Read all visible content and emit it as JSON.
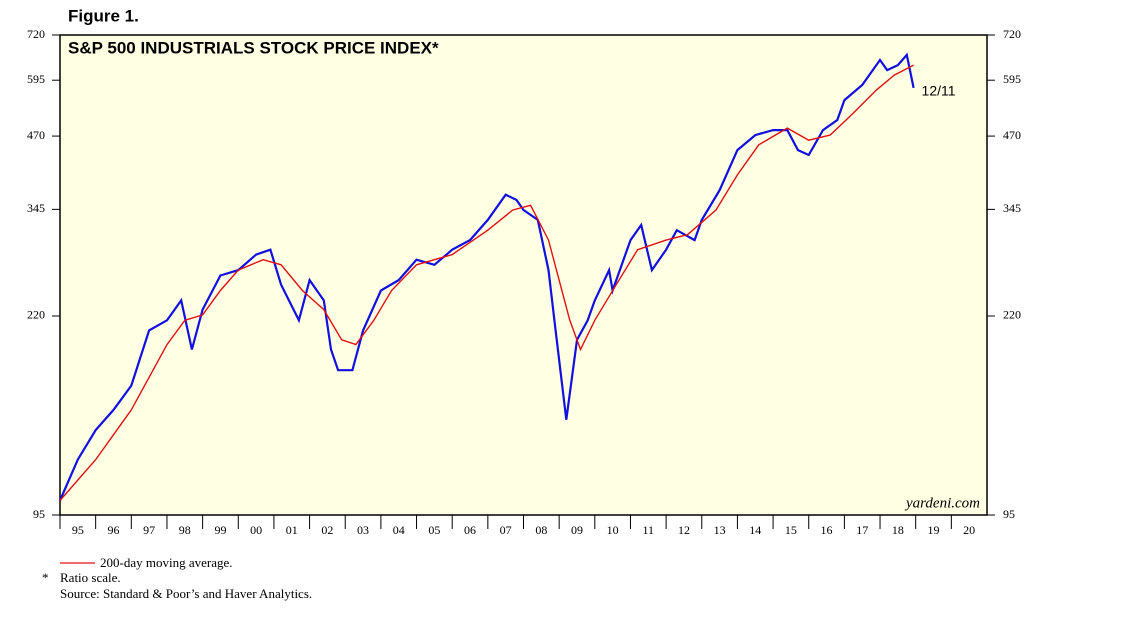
{
  "figure_label": "Figure 1.",
  "chart_data": {
    "type": "line",
    "title": "S&P 500 INDUSTRIALS STOCK PRICE INDEX*",
    "log_scale": true,
    "xlim": [
      1995,
      2021
    ],
    "xticks": [
      {
        "value": 1995,
        "label": "95"
      },
      {
        "value": 1996,
        "label": "96"
      },
      {
        "value": 1997,
        "label": "97"
      },
      {
        "value": 1998,
        "label": "98"
      },
      {
        "value": 1999,
        "label": "99"
      },
      {
        "value": 2000,
        "label": "00"
      },
      {
        "value": 2001,
        "label": "01"
      },
      {
        "value": 2002,
        "label": "02"
      },
      {
        "value": 2003,
        "label": "03"
      },
      {
        "value": 2004,
        "label": "04"
      },
      {
        "value": 2005,
        "label": "05"
      },
      {
        "value": 2006,
        "label": "06"
      },
      {
        "value": 2007,
        "label": "07"
      },
      {
        "value": 2008,
        "label": "08"
      },
      {
        "value": 2009,
        "label": "09"
      },
      {
        "value": 2010,
        "label": "10"
      },
      {
        "value": 2011,
        "label": "11"
      },
      {
        "value": 2012,
        "label": "12"
      },
      {
        "value": 2013,
        "label": "13"
      },
      {
        "value": 2014,
        "label": "14"
      },
      {
        "value": 2015,
        "label": "15"
      },
      {
        "value": 2016,
        "label": "16"
      },
      {
        "value": 2017,
        "label": "17"
      },
      {
        "value": 2018,
        "label": "18"
      },
      {
        "value": 2019,
        "label": "19"
      },
      {
        "value": 2020,
        "label": "20"
      }
    ],
    "ylim": [
      95,
      720
    ],
    "yticks": [
      95,
      220,
      345,
      470,
      595,
      720
    ],
    "series": [
      {
        "color": "#1010e0",
        "x": [
          1995.0,
          1995.5,
          1996.0,
          1996.5,
          1997.0,
          1997.5,
          1998.0,
          1998.4,
          1998.7,
          1999.0,
          1999.5,
          2000.0,
          2000.5,
          2000.9,
          2001.2,
          2001.7,
          2002.0,
          2002.4,
          2002.6,
          2002.8,
          2003.2,
          2003.5,
          2004.0,
          2004.5,
          2005.0,
          2005.5,
          2006.0,
          2006.5,
          2007.0,
          2007.5,
          2007.8,
          2008.0,
          2008.4,
          2008.7,
          2008.9,
          2009.2,
          2009.5,
          2009.8,
          2010.0,
          2010.4,
          2010.5,
          2011.0,
          2011.3,
          2011.6,
          2012.0,
          2012.3,
          2012.8,
          2013.0,
          2013.5,
          2014.0,
          2014.5,
          2015.0,
          2015.4,
          2015.7,
          2016.0,
          2016.4,
          2016.8,
          2017.0,
          2017.5,
          2018.0,
          2018.2,
          2018.5,
          2018.75,
          2018.94
        ],
        "values": [
          101,
          120,
          136,
          148,
          164,
          207,
          216,
          235,
          191,
          226,
          261,
          267,
          285,
          291,
          251,
          216,
          256,
          235,
          191,
          175,
          175,
          207,
          245,
          256,
          279,
          273,
          291,
          303,
          330,
          367,
          359,
          344,
          330,
          267,
          207,
          142,
          199,
          216,
          235,
          267,
          245,
          303,
          323,
          267,
          291,
          316,
          303,
          330,
          374,
          443,
          472,
          482,
          482,
          443,
          434,
          482,
          503,
          547,
          583,
          648,
          621,
          634,
          662,
          576
        ]
      },
      {
        "name": "200-day moving average.",
        "color": "#e01010",
        "x": [
          1995.0,
          1996.0,
          1997.0,
          1998.0,
          1998.5,
          1999.0,
          1999.5,
          2000.0,
          2000.7,
          2001.2,
          2001.8,
          2002.4,
          2002.9,
          2003.3,
          2003.8,
          2004.3,
          2005.0,
          2006.0,
          2007.0,
          2007.7,
          2008.2,
          2008.7,
          2009.3,
          2009.6,
          2010.0,
          2010.6,
          2011.2,
          2012.0,
          2012.6,
          2013.4,
          2014.0,
          2014.6,
          2015.4,
          2016.0,
          2016.6,
          2017.2,
          2017.9,
          2018.4,
          2018.94
        ],
        "values": [
          101,
          120,
          148,
          195,
          216,
          221,
          245,
          267,
          279,
          273,
          245,
          226,
          199,
          195,
          216,
          245,
          273,
          285,
          316,
          344,
          351,
          303,
          216,
          191,
          216,
          251,
          291,
          303,
          310,
          344,
          399,
          453,
          486,
          462,
          472,
          514,
          571,
          608,
          634
        ]
      }
    ],
    "annotations": [
      "12/11",
      "yardeni.com"
    ]
  },
  "notes": [
    "*",
    "Ratio scale.",
    "Source: Standard & Poor’s and Haver Analytics."
  ]
}
